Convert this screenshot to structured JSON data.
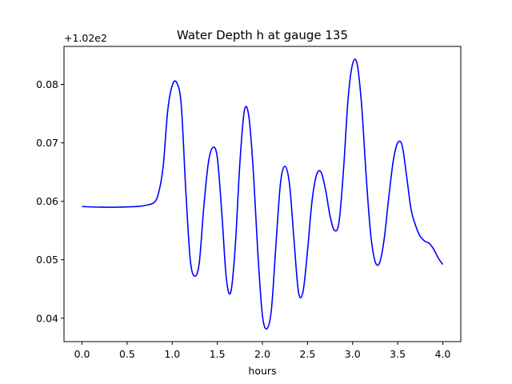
{
  "chart_data": {
    "type": "line",
    "title": "Water Depth h at gauge 135",
    "xlabel": "hours",
    "ylabel": "",
    "y_offset_label": "+1.02e2",
    "xlim": [
      -0.2,
      4.2
    ],
    "ylim": [
      0.036,
      0.0865
    ],
    "x_ticks": [
      0.0,
      0.5,
      1.0,
      1.5,
      2.0,
      2.5,
      3.0,
      3.5,
      4.0
    ],
    "x_tick_labels": [
      "0.0",
      "0.5",
      "1.0",
      "1.5",
      "2.0",
      "2.5",
      "3.0",
      "3.5",
      "4.0"
    ],
    "y_ticks": [
      0.04,
      0.05,
      0.06,
      0.07,
      0.08
    ],
    "y_tick_labels": [
      "0.04",
      "0.05",
      "0.06",
      "0.07",
      "0.08"
    ],
    "grid": false,
    "legend": "none",
    "series": [
      {
        "color": "#0000ff",
        "x": [
          0.0,
          0.2,
          0.4,
          0.6,
          0.7,
          0.8,
          0.85,
          0.9,
          0.95,
          1.0,
          1.05,
          1.1,
          1.15,
          1.2,
          1.25,
          1.3,
          1.35,
          1.4,
          1.45,
          1.5,
          1.55,
          1.6,
          1.65,
          1.7,
          1.75,
          1.8,
          1.85,
          1.9,
          1.95,
          2.0,
          2.05,
          2.1,
          2.15,
          2.2,
          2.25,
          2.3,
          2.35,
          2.4,
          2.45,
          2.5,
          2.55,
          2.6,
          2.65,
          2.7,
          2.75,
          2.8,
          2.85,
          2.9,
          2.95,
          3.0,
          3.05,
          3.1,
          3.15,
          3.2,
          3.25,
          3.3,
          3.35,
          3.4,
          3.45,
          3.5,
          3.55,
          3.6,
          3.65,
          3.7,
          3.75,
          3.8,
          3.85,
          3.9,
          3.95,
          4.0
        ],
        "y": [
          0.0591,
          0.059,
          0.059,
          0.0591,
          0.0593,
          0.0598,
          0.0615,
          0.066,
          0.0755,
          0.0798,
          0.0803,
          0.0765,
          0.062,
          0.05,
          0.0472,
          0.0495,
          0.059,
          0.0665,
          0.0692,
          0.0675,
          0.058,
          0.0468,
          0.0445,
          0.0525,
          0.0665,
          0.0755,
          0.0745,
          0.065,
          0.051,
          0.0405,
          0.0382,
          0.0415,
          0.0525,
          0.063,
          0.066,
          0.063,
          0.0535,
          0.0445,
          0.0445,
          0.0515,
          0.06,
          0.0645,
          0.065,
          0.062,
          0.0575,
          0.055,
          0.0565,
          0.0655,
          0.0775,
          0.0835,
          0.0835,
          0.0765,
          0.0645,
          0.0545,
          0.0497,
          0.0495,
          0.0535,
          0.0605,
          0.0668,
          0.07,
          0.0695,
          0.0642,
          0.0585,
          0.0558,
          0.054,
          0.0532,
          0.0528,
          0.0518,
          0.0503,
          0.0492
        ]
      }
    ]
  }
}
